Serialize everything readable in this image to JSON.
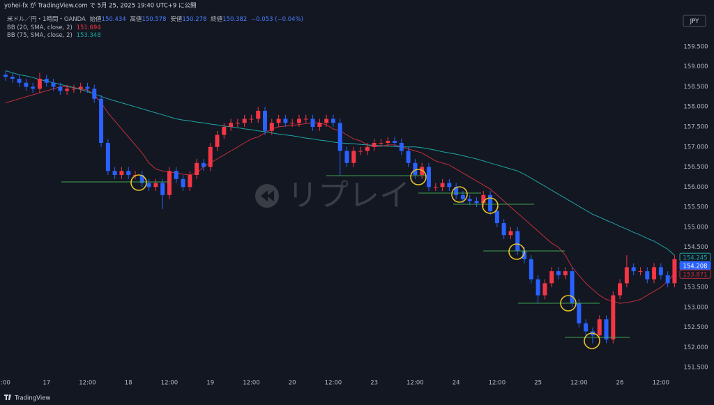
{
  "header": {
    "published": "yohei-fx が TradingView.com で 5月 25, 2025 19:40 UTC+9 に公開",
    "symbol": "米ドル／円・1時間・OANDA",
    "ohlc": [
      {
        "label": "始値",
        "value": "150.434"
      },
      {
        "label": "高値",
        "value": "150.578"
      },
      {
        "label": "安値",
        "value": "150.278"
      },
      {
        "label": "終値",
        "value": "150.382"
      }
    ],
    "change": "−0.053 (−0.04%)"
  },
  "indicators": [
    {
      "name": "BB (20, SMA, close, 2)",
      "value": "151.694"
    },
    {
      "name": "BB (75, SMA, close, 2)",
      "value": "153.348"
    }
  ],
  "currency": "JPY",
  "watermark": "リプレイ",
  "footer": "TradingView",
  "chart_data": {
    "type": "candlestick",
    "categories": [
      ":00",
      null,
      null,
      null,
      null,
      null,
      "17",
      null,
      null,
      null,
      null,
      null,
      "12:00",
      null,
      null,
      null,
      null,
      null,
      "18",
      null,
      null,
      null,
      null,
      null,
      "12:00",
      null,
      null,
      null,
      null,
      null,
      "19",
      null,
      null,
      null,
      null,
      null,
      "12:00",
      null,
      null,
      null,
      null,
      null,
      "20",
      null,
      null,
      null,
      null,
      null,
      "12:00",
      null,
      null,
      null,
      null,
      null,
      "23",
      null,
      null,
      null,
      null,
      null,
      "12:00",
      null,
      null,
      null,
      null,
      null,
      "24",
      null,
      null,
      null,
      null,
      null,
      "12:00",
      null,
      null,
      null,
      null,
      null,
      "25",
      null,
      null,
      null,
      null,
      null,
      "12:00",
      null,
      null,
      null,
      null,
      null,
      "26",
      null,
      null,
      null,
      null,
      null,
      "12:00",
      null,
      null
    ],
    "open": [
      158.8,
      158.75,
      158.7,
      158.6,
      158.5,
      158.45,
      158.7,
      158.6,
      158.5,
      158.4,
      158.45,
      158.45,
      158.5,
      158.45,
      158.2,
      157.1,
      156.4,
      156.3,
      156.4,
      156.3,
      156.3,
      156.1,
      156.0,
      156.1,
      155.8,
      156.4,
      156.2,
      156.0,
      156.3,
      156.6,
      156.5,
      157.0,
      157.3,
      157.5,
      157.6,
      157.6,
      157.7,
      157.7,
      157.9,
      157.4,
      157.6,
      157.7,
      157.6,
      157.6,
      157.7,
      157.7,
      157.5,
      157.6,
      157.7,
      157.6,
      156.9,
      156.6,
      156.9,
      156.9,
      157.0,
      157.1,
      157.1,
      157.15,
      157.1,
      156.9,
      156.6,
      156.3,
      156.5,
      156.0,
      156.0,
      156.1,
      156.0,
      155.8,
      155.7,
      155.65,
      155.6,
      155.8,
      155.4,
      155.1,
      154.8,
      154.9,
      154.4,
      154.2,
      153.7,
      153.3,
      153.6,
      153.9,
      153.8,
      153.9,
      153.1,
      152.6,
      152.4,
      152.3,
      152.7,
      152.2,
      153.3,
      153.6,
      154.0,
      153.9,
      153.9,
      153.7,
      154.0,
      153.8,
      153.6
    ],
    "high": [
      158.9,
      158.85,
      158.8,
      158.7,
      158.6,
      158.85,
      158.8,
      158.7,
      158.6,
      158.55,
      158.55,
      158.6,
      158.6,
      158.55,
      158.3,
      157.2,
      156.5,
      156.5,
      156.5,
      156.4,
      156.4,
      156.2,
      156.2,
      156.2,
      156.5,
      156.5,
      156.3,
      156.4,
      156.7,
      156.7,
      157.1,
      157.4,
      157.6,
      157.7,
      157.7,
      157.8,
      157.8,
      158.0,
      158.0,
      157.7,
      157.8,
      157.8,
      157.7,
      157.8,
      157.8,
      157.8,
      157.7,
      157.8,
      157.8,
      157.7,
      157.0,
      157.0,
      157.0,
      157.1,
      157.2,
      157.2,
      157.25,
      157.25,
      157.2,
      157.0,
      156.7,
      156.6,
      156.6,
      156.1,
      156.2,
      156.2,
      156.1,
      155.9,
      155.8,
      155.75,
      155.9,
      155.9,
      155.5,
      155.2,
      155.0,
      155.0,
      154.5,
      154.3,
      153.8,
      153.7,
      154.0,
      154.0,
      154.0,
      154.0,
      153.2,
      152.7,
      152.5,
      152.8,
      152.8,
      153.4,
      153.7,
      154.3,
      154.1,
      154.0,
      154.0,
      154.1,
      154.1,
      153.9,
      154.3
    ],
    "low": [
      158.65,
      158.6,
      158.5,
      158.4,
      158.35,
      158.35,
      158.5,
      158.4,
      158.3,
      158.3,
      158.35,
      158.35,
      158.35,
      158.1,
      157.0,
      156.3,
      156.2,
      156.2,
      156.2,
      156.2,
      156.0,
      155.9,
      155.9,
      155.45,
      155.7,
      156.1,
      155.9,
      155.9,
      156.2,
      156.4,
      156.4,
      156.9,
      157.2,
      157.4,
      157.5,
      157.5,
      157.6,
      157.6,
      157.3,
      157.3,
      157.5,
      157.5,
      157.5,
      157.5,
      157.6,
      157.4,
      157.4,
      157.5,
      157.5,
      156.3,
      156.5,
      156.5,
      156.8,
      156.8,
      156.9,
      157.0,
      157.0,
      157.0,
      156.8,
      156.5,
      156.2,
      156.2,
      155.9,
      155.9,
      155.9,
      155.9,
      155.7,
      155.6,
      155.55,
      155.5,
      155.5,
      155.3,
      155.0,
      154.7,
      154.7,
      154.3,
      154.1,
      153.6,
      153.1,
      153.2,
      153.5,
      153.7,
      153.7,
      153.0,
      152.5,
      152.3,
      152.1,
      152.2,
      152.1,
      152.1,
      153.2,
      153.5,
      153.8,
      153.8,
      153.6,
      153.6,
      153.7,
      153.5,
      153.5
    ],
    "close": [
      158.75,
      158.7,
      158.6,
      158.5,
      158.45,
      158.7,
      158.6,
      158.5,
      158.4,
      158.45,
      158.45,
      158.5,
      158.45,
      158.2,
      157.1,
      156.4,
      156.3,
      156.4,
      156.3,
      156.3,
      156.1,
      156.0,
      156.1,
      155.8,
      156.4,
      156.2,
      156.0,
      156.3,
      156.6,
      156.5,
      157.0,
      157.3,
      157.5,
      157.6,
      157.6,
      157.7,
      157.7,
      157.9,
      157.4,
      157.6,
      157.7,
      157.6,
      157.6,
      157.7,
      157.7,
      157.5,
      157.6,
      157.7,
      157.6,
      156.9,
      156.6,
      156.9,
      156.9,
      157.0,
      157.1,
      157.1,
      157.15,
      157.1,
      156.9,
      156.6,
      156.3,
      156.5,
      156.0,
      156.0,
      156.1,
      156.0,
      155.8,
      155.7,
      155.65,
      155.6,
      155.8,
      155.4,
      155.1,
      154.8,
      154.9,
      154.4,
      154.2,
      153.7,
      153.3,
      153.6,
      153.9,
      153.8,
      153.9,
      153.1,
      152.6,
      152.4,
      152.3,
      152.7,
      152.2,
      153.3,
      153.6,
      154.0,
      153.9,
      153.9,
      153.7,
      154.0,
      153.8,
      153.6,
      154.2
    ],
    "up_color": "#f23645",
    "down_color": "#2962ff",
    "last_price": 154.208,
    "last_price_color": "#2962ff",
    "lines": [
      {
        "color": "#c2313a",
        "last": 153.871,
        "values": [
          158.1,
          158.15,
          158.2,
          158.25,
          158.3,
          158.35,
          158.4,
          158.45,
          158.5,
          158.5,
          158.48,
          158.45,
          158.42,
          158.3,
          158.1,
          157.85,
          157.65,
          157.45,
          157.25,
          157.05,
          156.85,
          156.6,
          156.45,
          156.4,
          156.38,
          156.35,
          156.32,
          156.3,
          156.35,
          156.5,
          156.6,
          156.7,
          156.8,
          156.9,
          157.0,
          157.1,
          157.2,
          157.25,
          157.35,
          157.45,
          157.5,
          157.52,
          157.54,
          157.56,
          157.58,
          157.6,
          157.6,
          157.55,
          157.45,
          157.4,
          157.3,
          157.2,
          157.15,
          157.05,
          157.0,
          157.02,
          157.05,
          157.05,
          157.0,
          156.95,
          156.9,
          156.85,
          156.75,
          156.65,
          156.6,
          156.55,
          156.45,
          156.35,
          156.25,
          156.15,
          156.05,
          155.95,
          155.8,
          155.65,
          155.5,
          155.35,
          155.2,
          155.05,
          154.9,
          154.75,
          154.6,
          154.5,
          154.3,
          154.0,
          153.8,
          153.6,
          153.45,
          153.3,
          153.2,
          153.15,
          153.1,
          153.12,
          153.15,
          153.2,
          153.3,
          153.4,
          153.5,
          153.65,
          153.85
        ]
      },
      {
        "color": "#1ea5a0",
        "last": 154.245,
        "values": [
          158.9,
          158.85,
          158.8,
          158.77,
          158.73,
          158.68,
          158.64,
          158.6,
          158.56,
          158.52,
          158.48,
          158.43,
          158.38,
          158.32,
          158.26,
          158.2,
          158.15,
          158.1,
          158.05,
          158.0,
          157.95,
          157.9,
          157.85,
          157.8,
          157.75,
          157.7,
          157.67,
          157.65,
          157.62,
          157.6,
          157.57,
          157.55,
          157.52,
          157.5,
          157.48,
          157.45,
          157.43,
          157.4,
          157.38,
          157.35,
          157.32,
          157.3,
          157.28,
          157.25,
          157.22,
          157.2,
          157.17,
          157.15,
          157.12,
          157.1,
          157.09,
          157.08,
          157.06,
          157.05,
          157.04,
          157.03,
          157.02,
          157.01,
          157.0,
          157.0,
          157.0,
          156.98,
          156.95,
          156.92,
          156.88,
          156.85,
          156.82,
          156.78,
          156.74,
          156.7,
          156.65,
          156.6,
          156.55,
          156.5,
          156.45,
          156.4,
          156.32,
          156.22,
          156.12,
          156.02,
          155.92,
          155.82,
          155.72,
          155.62,
          155.52,
          155.42,
          155.32,
          155.25,
          155.17,
          155.1,
          155.02,
          154.95,
          154.87,
          154.8,
          154.72,
          154.65,
          154.55,
          154.45,
          154.3
        ]
      }
    ],
    "ylim": [
      151.19,
      160.49
    ],
    "yticks": [
      {
        "value": 151.5,
        "label": "151.500"
      },
      {
        "value": 152,
        "label": "152.000"
      },
      {
        "value": 152.5,
        "label": "152.500"
      },
      {
        "value": 153,
        "label": "153.000"
      },
      {
        "value": 153.5,
        "label": "153.500"
      },
      {
        "value": 154,
        "label": "154.000"
      },
      {
        "value": 154.5,
        "label": "154.500"
      },
      {
        "value": 155,
        "label": "155.000"
      },
      {
        "value": 155.5,
        "label": "155.500"
      },
      {
        "value": 156,
        "label": "156.000"
      },
      {
        "value": 156.5,
        "label": "156.500"
      },
      {
        "value": 157,
        "label": "157.000"
      },
      {
        "value": 157.5,
        "label": "157.500"
      },
      {
        "value": 158,
        "label": "158.000"
      },
      {
        "value": 158.5,
        "label": "158.500"
      },
      {
        "value": 159,
        "label": "159.000"
      },
      {
        "value": 159.5,
        "label": "159.500"
      }
    ],
    "grid": false
  }
}
